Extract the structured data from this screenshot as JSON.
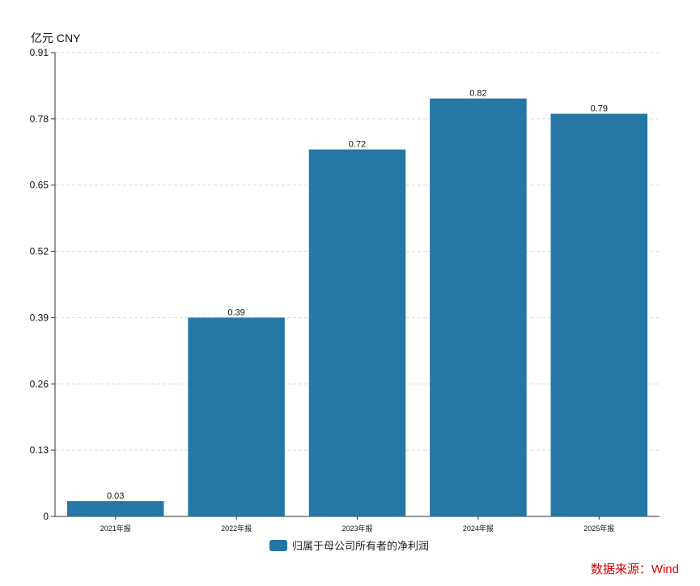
{
  "unit_label": "亿元 CNY",
  "source_label": "数据来源：Wind",
  "colors": {
    "bar": "#2577a6",
    "source_text": "#d40000",
    "axis": "#333333",
    "grid": "#d9d9d9"
  },
  "chart_data": {
    "type": "bar",
    "categories": [
      "2021年报",
      "2022年报",
      "2023年报",
      "2024年报",
      "2025年报"
    ],
    "series": [
      {
        "name": "归属于母公司所有者的净利润",
        "values": [
          0.03,
          0.39,
          0.72,
          0.82,
          0.79
        ]
      }
    ],
    "data_labels": [
      "0.03",
      "0.39",
      "0.72",
      "0.82",
      "0.79"
    ],
    "yticks": [
      "0",
      "0.13",
      "0.26",
      "0.39",
      "0.52",
      "0.65",
      "0.78",
      "0.91"
    ],
    "ylim": [
      0,
      0.91
    ],
    "ylabel": "亿元 CNY",
    "grid": true,
    "legend_position": "bottom"
  }
}
